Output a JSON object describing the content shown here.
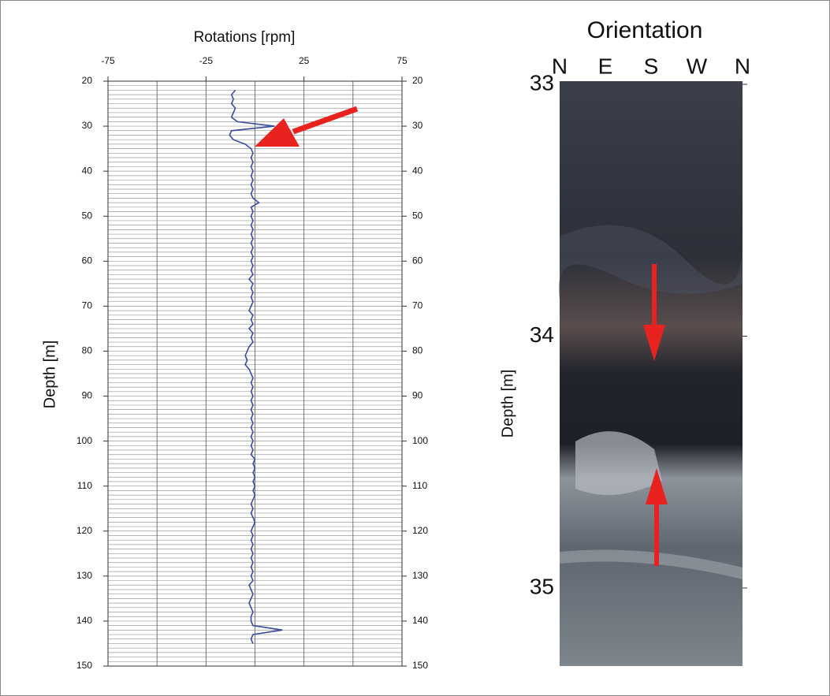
{
  "chart_data": [
    {
      "type": "line",
      "title": "Rotations [rpm]",
      "ylabel": "Depth [m]",
      "xlim": [
        -75,
        75
      ],
      "xticks": [
        -75,
        -25,
        25,
        75
      ],
      "xgrid": [
        -75,
        -50,
        -25,
        0,
        25,
        50,
        75
      ],
      "ylim": [
        20,
        150
      ],
      "yticks": [
        20,
        30,
        40,
        50,
        60,
        70,
        80,
        90,
        100,
        110,
        120,
        130,
        140,
        150
      ],
      "ygrid_step": 1,
      "color": "#3b4c9e",
      "depth": [
        22,
        23,
        24,
        25,
        26,
        27,
        28,
        29,
        30,
        31,
        32,
        33,
        34,
        35,
        36,
        37,
        38,
        39,
        40,
        41,
        42,
        43,
        44,
        45,
        46,
        47,
        48,
        49,
        50,
        51,
        52,
        53,
        54,
        55,
        56,
        57,
        58,
        59,
        60,
        61,
        62,
        63,
        64,
        65,
        66,
        67,
        68,
        69,
        70,
        71,
        72,
        73,
        74,
        75,
        76,
        77,
        78,
        79,
        80,
        81,
        82,
        83,
        84,
        85,
        86,
        87,
        88,
        89,
        90,
        91,
        92,
        93,
        94,
        95,
        96,
        97,
        98,
        99,
        100,
        101,
        102,
        103,
        104,
        105,
        106,
        107,
        108,
        109,
        110,
        111,
        112,
        113,
        114,
        115,
        116,
        117,
        118,
        119,
        120,
        121,
        122,
        123,
        124,
        125,
        126,
        127,
        128,
        129,
        130,
        131,
        132,
        133,
        134,
        135,
        136,
        137,
        138,
        139,
        140,
        141,
        142,
        143,
        144,
        145
      ],
      "values": [
        -10,
        -12,
        -11,
        -12,
        -10,
        -11,
        -12,
        -9,
        10,
        -12,
        -13,
        -11,
        -5,
        -2,
        -1,
        -2,
        -1,
        -2,
        -1,
        -2,
        -1,
        -2,
        -1,
        -2,
        -1,
        2,
        -2,
        -1,
        -2,
        -1,
        -2,
        -1,
        -2,
        -1,
        -2,
        -1,
        -2,
        -1,
        -2,
        -1,
        -2,
        -1,
        -3,
        -1,
        -2,
        -1,
        -2,
        -1,
        -2,
        -3,
        -1,
        -2,
        -1,
        -3,
        -1,
        -2,
        -1,
        -3,
        -4,
        -5,
        -4,
        -5,
        -3,
        -2,
        -1,
        -2,
        -1,
        -2,
        -1,
        -2,
        -1,
        -2,
        -1,
        -2,
        -1,
        -2,
        -1,
        -2,
        -1,
        -2,
        -1,
        -2,
        0,
        -1,
        0,
        -1,
        0,
        -1,
        0,
        -1,
        0,
        -1,
        -2,
        -1,
        -2,
        -1,
        0,
        -1,
        -2,
        -1,
        -2,
        -1,
        -2,
        -1,
        -2,
        -1,
        -2,
        -1,
        -2,
        -1,
        -3,
        -2,
        -1,
        -2,
        -3,
        -2,
        -1,
        -2,
        -2,
        -1,
        14,
        -1,
        -2,
        -1
      ]
    },
    {
      "type": "image",
      "title": "Orientation",
      "ylabel": "Depth [m]",
      "categories": [
        "N",
        "E",
        "S",
        "W",
        "N"
      ],
      "ylim": [
        33,
        35
      ],
      "yticks": [
        33,
        34,
        35
      ]
    }
  ]
}
